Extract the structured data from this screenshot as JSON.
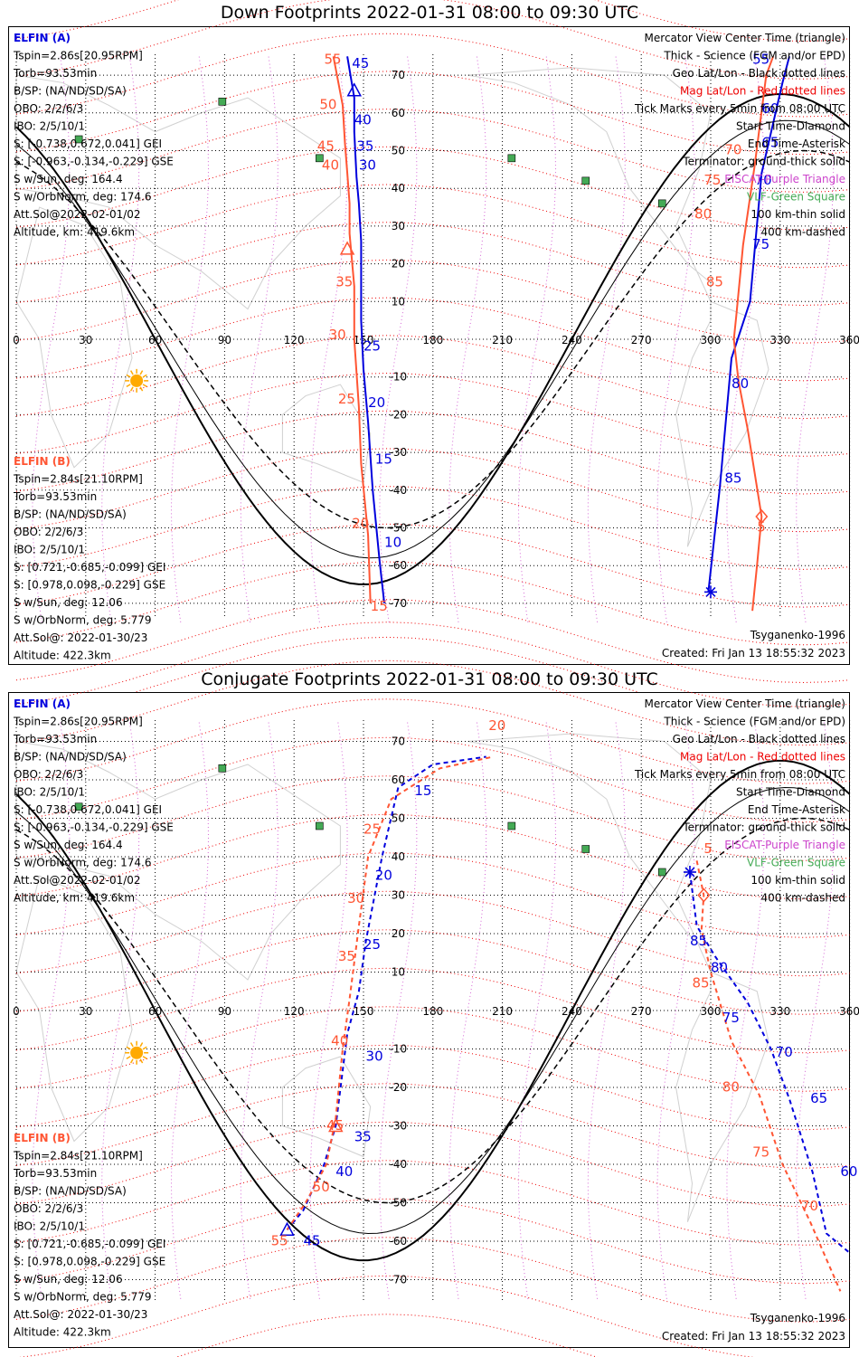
{
  "panels": [
    {
      "id": "down",
      "title": "Down Footprints 2022-01-31 08:00 to 09:30 UTC",
      "left_info": {
        "A": {
          "name": "ELFIN (A)",
          "lines": [
            "Tspin=2.86s[20.95RPM]",
            "Torb=93.53min",
            "B/SP: (NA/ND/SD/SA)",
            "OBO: 2/2/6/3",
            "IBO: 2/5/10/1",
            "S: [-0.738,0.672,0.041] GEI",
            "S: [-0.963,-0.134,-0.229] GSE",
            "S w/Sun, deg: 164.4",
            "S w/OrbNorm, deg: 174.6",
            "Att.Sol@2022-02-01/02",
            "Altitude, km: 419.6km"
          ]
        },
        "B": {
          "name": "ELFIN (B)",
          "lines": [
            "Tspin=2.84s[21.10RPM]",
            "Torb=93.53min",
            "B/SP: (NA/ND/SD/SA)",
            "OBO: 2/2/6/3",
            "IBO: 2/5/10/1",
            "S: [0.721,-0.685,-0.099] GEI",
            "S: [0.978,0.098,-0.229] GSE",
            "S w/Sun, deg: 12.06",
            "S w/OrbNorm, deg: 5.779",
            "Att.Sol@: 2022-01-30/23",
            "Altitude: 422.3km"
          ]
        }
      },
      "legend": [
        "Mercator View Center Time (triangle)",
        "Thick - Science (FGM and/or EPD)",
        "Geo Lat/Lon - Black dotted lines",
        "Mag Lat/Lon - Red dotted lines",
        "Tick Marks every 5min from 08:00 UTC",
        "Start Time-Diamond",
        "End Time-Asterisk",
        "Terminator: ground-thick solid",
        "EISCAT-Purple Triangle",
        "VLF-Green Square",
        "100 km-thin solid",
        "400 km-dashed"
      ],
      "model": "Tsyganenko-1996",
      "created": "Created: Fri Jan 13 18:55:32 2023"
    },
    {
      "id": "conjugate",
      "title": "Conjugate Footprints 2022-01-31 08:00 to 09:30 UTC",
      "left_info": {
        "A": {
          "name": "ELFIN (A)",
          "lines": [
            "Tspin=2.86s[20.95RPM]",
            "Torb=93.53min",
            "B/SP: (NA/ND/SD/SA)",
            "OBO: 2/2/6/3",
            "IBO: 2/5/10/1",
            "S: [-0.738,0.672,0.041] GEI",
            "S: [-0.963,-0.134,-0.229] GSE",
            "S w/Sun, deg: 164.4",
            "S w/OrbNorm, deg: 174.6",
            "Att.Sol@2022-02-01/02",
            "Altitude, km: 419.6km"
          ]
        },
        "B": {
          "name": "ELFIN (B)",
          "lines": [
            "Tspin=2.84s[21.10RPM]",
            "Torb=93.53min",
            "B/SP: (NA/ND/SD/SA)",
            "OBO: 2/2/6/3",
            "IBO: 2/5/10/1",
            "S: [0.721,-0.685,-0.099] GEI",
            "S: [0.978,0.098,-0.229] GSE",
            "S w/Sun, deg: 12.06",
            "S w/OrbNorm, deg: 5.779",
            "Att.Sol@: 2022-01-30/23",
            "Altitude: 422.3km"
          ]
        }
      },
      "legend": [
        "Mercator View Center Time (triangle)",
        "Thick - Science (FGM and/or EPD)",
        "Geo Lat/Lon - Black dotted lines",
        "Mag Lat/Lon - Red dotted lines",
        "Tick Marks every 5min from 08:00 UTC",
        "Start Time-Diamond",
        "End Time-Asterisk",
        "Terminator: ground-thick solid",
        "EISCAT-Purple Triangle",
        "VLF-Green Square",
        "100 km-thin solid",
        "400 km-dashed"
      ],
      "model": "Tsyganenko-1996",
      "created": "Created: Fri Jan 13 18:55:32 2023"
    }
  ],
  "colors": {
    "elfin_a": "#0000dd",
    "elfin_b": "#ff5533",
    "mag_grid": "#ee0000",
    "geo_grid": "#000000",
    "eiscat": "#cc44cc",
    "vlf": "#44aa55",
    "sun": "#ffaa00",
    "coast": "#aaaaaa"
  },
  "chart_data": [
    {
      "type": "line",
      "title": "Down Footprints 2022-01-31 08:00 to 09:30 UTC",
      "x_axis": {
        "label": "",
        "range": [
          0,
          360
        ],
        "ticks": [
          0,
          30,
          60,
          90,
          120,
          150,
          180,
          210,
          240,
          270,
          300,
          330,
          360
        ]
      },
      "y_axis": {
        "label": "",
        "range": [
          -75,
          75
        ],
        "ticks": [
          70,
          60,
          50,
          40,
          30,
          20,
          10,
          -10,
          -20,
          -30,
          -40,
          -50,
          -60,
          -70
        ]
      },
      "grid": true,
      "sun": {
        "lon": 52,
        "lat": -11
      },
      "vlf_sites": [
        [
          89,
          63
        ],
        [
          27,
          53
        ],
        [
          131,
          48
        ],
        [
          214,
          48
        ],
        [
          246,
          42
        ],
        [
          279,
          36
        ]
      ],
      "series": [
        {
          "name": "ELFIN (A)",
          "style": "solid",
          "points": [
            [
              143,
              75
            ],
            [
              146,
              64
            ],
            [
              146,
              55
            ],
            [
              147,
              43
            ],
            [
              148,
              36
            ],
            [
              149,
              26
            ],
            [
              149,
              5
            ],
            [
              150,
              -8
            ],
            [
              152,
              -22
            ],
            [
              154,
              -40
            ],
            [
              157,
              -59
            ],
            [
              159,
              -70
            ]
          ],
          "tick_labels": [
            45,
            40,
            35,
            30,
            25,
            20,
            15,
            10
          ],
          "end_marker": [
            300,
            -67
          ],
          "start_marker": null,
          "north_points": [
            [
              299,
              -67
            ],
            [
              304,
              -39
            ],
            [
              309,
              -5
            ],
            [
              317,
              10
            ],
            [
              322,
              44
            ],
            [
              331,
              68
            ],
            [
              334,
              75
            ]
          ],
          "north_tick_labels": [
            85,
            80,
            75,
            70,
            65,
            60,
            55
          ]
        },
        {
          "name": "ELFIN (B)",
          "style": "solid",
          "points": [
            [
              137,
              75
            ],
            [
              141,
              62
            ],
            [
              142,
              52
            ],
            [
              143,
              44
            ],
            [
              144,
              36
            ],
            [
              144,
              28
            ],
            [
              146,
              14
            ],
            [
              146,
              0
            ],
            [
              148,
              -18
            ],
            [
              149,
              -33
            ],
            [
              152,
              -52
            ],
            [
              153,
              -70
            ]
          ],
          "tick_labels": [
            55,
            50,
            45,
            40,
            35,
            30,
            25,
            20,
            15
          ],
          "start_marker": [
            322,
            -47
          ],
          "north_points": [
            [
              318,
              -72
            ],
            [
              320,
              -60
            ],
            [
              322,
              -47
            ],
            [
              316,
              -24
            ],
            [
              312,
              -11
            ],
            [
              310,
              0
            ],
            [
              311,
              6
            ],
            [
              314,
              25
            ],
            [
              319,
              46
            ],
            [
              324,
              70
            ],
            [
              327,
              75
            ]
          ],
          "north_tick_labels": [
            5,
            85,
            80,
            75,
            70,
            65
          ]
        },
        {
          "name": "Terminator",
          "style": "thick-solid",
          "sinusoid": {
            "amplitude": 65,
            "phase_lon": 150
          }
        },
        {
          "name": "100 km",
          "style": "thin-solid",
          "sinusoid": {
            "amplitude": 58,
            "phase_lon": 153
          }
        },
        {
          "name": "400 km",
          "style": "dashed",
          "sinusoid": {
            "amplitude": 50,
            "phase_lon": 160
          }
        }
      ],
      "tick_annotations": {
        "A": [
          [
            145,
            72,
            "45"
          ],
          [
            146,
            57,
            "40"
          ],
          [
            147,
            50,
            "35"
          ],
          [
            148,
            45,
            "30"
          ],
          [
            150,
            -3,
            "25"
          ],
          [
            152,
            -18,
            "20"
          ],
          [
            155,
            -33,
            "15"
          ],
          [
            159,
            -55,
            "10"
          ],
          [
            318,
            73,
            "55"
          ],
          [
            322,
            60,
            "60"
          ],
          [
            322,
            51,
            "65"
          ],
          [
            319,
            41,
            "70"
          ],
          [
            318,
            24,
            "75"
          ],
          [
            309,
            -13,
            "80"
          ],
          [
            306,
            -38,
            "85"
          ]
        ],
        "B": [
          [
            133,
            73,
            "55"
          ],
          [
            131,
            61,
            "50"
          ],
          [
            130,
            50,
            "45"
          ],
          [
            132,
            45,
            "40"
          ],
          [
            138,
            14,
            "35"
          ],
          [
            135,
            0,
            "30"
          ],
          [
            139,
            -17,
            "25"
          ],
          [
            145,
            -50,
            "20"
          ],
          [
            153,
            -72,
            "15"
          ],
          [
            306,
            49,
            "70"
          ],
          [
            297,
            41,
            "75"
          ],
          [
            293,
            32,
            "80"
          ],
          [
            298,
            14,
            "85"
          ],
          [
            320,
            -51,
            "5"
          ]
        ]
      }
    },
    {
      "type": "line",
      "title": "Conjugate Footprints 2022-01-31 08:00 to 09:30 UTC",
      "x_axis": {
        "label": "",
        "range": [
          0,
          360
        ],
        "ticks": [
          0,
          30,
          60,
          90,
          120,
          150,
          180,
          210,
          240,
          270,
          300,
          330,
          360
        ]
      },
      "y_axis": {
        "label": "",
        "range": [
          -75,
          75
        ],
        "ticks": [
          70,
          60,
          50,
          40,
          30,
          20,
          10,
          -10,
          -20,
          -30,
          -40,
          -50,
          -60,
          -70
        ]
      },
      "grid": true,
      "sun": {
        "lon": 52,
        "lat": -11
      },
      "vlf_sites": [
        [
          89,
          63
        ],
        [
          27,
          53
        ],
        [
          131,
          48
        ],
        [
          214,
          48
        ],
        [
          246,
          42
        ],
        [
          279,
          36
        ]
      ],
      "series": [
        {
          "name": "ELFIN (A)",
          "style": "dashed",
          "points": [
            [
              117,
              -57
            ],
            [
              124,
              -52
            ],
            [
              133,
              -40
            ],
            [
              138,
              -30
            ],
            [
              143,
              -6
            ],
            [
              148,
              5
            ],
            [
              151,
              18
            ],
            [
              158,
              40
            ],
            [
              165,
              58
            ],
            [
              180,
              64
            ],
            [
              203,
              66
            ]
          ],
          "tick_labels": [
            45,
            40,
            35,
            30,
            25,
            20,
            15
          ],
          "end_marker": [
            291,
            36
          ],
          "north_points": [
            [
              291,
              36
            ],
            [
              294,
              22
            ],
            [
              302,
              14
            ],
            [
              316,
              2
            ],
            [
              326,
              -10
            ],
            [
              334,
              -23
            ],
            [
              344,
              -42
            ],
            [
              350,
              -58
            ],
            [
              360,
              -63
            ]
          ],
          "north_tick_labels": [
            85,
            80,
            75,
            70,
            65,
            60
          ]
        },
        {
          "name": "ELFIN (B)",
          "style": "dashed",
          "points": [
            [
              117,
              -57
            ],
            [
              125,
              -50
            ],
            [
              134,
              -40
            ],
            [
              138,
              -28
            ],
            [
              141,
              -10
            ],
            [
              144,
              3
            ],
            [
              148,
              22
            ],
            [
              152,
              40
            ],
            [
              162,
              55
            ],
            [
              183,
              63
            ],
            [
              206,
              66
            ]
          ],
          "tick_labels": [
            55,
            50,
            45,
            40,
            35,
            30,
            25,
            20
          ],
          "start_marker": [
            297,
            30
          ],
          "north_points": [
            [
              294,
              39
            ],
            [
              297,
              30
            ],
            [
              296,
              21
            ],
            [
              300,
              10
            ],
            [
              309,
              -8
            ],
            [
              321,
              -22
            ],
            [
              331,
              -40
            ],
            [
              343,
              -55
            ],
            [
              356,
              -73
            ]
          ],
          "north_tick_labels": [
            5,
            85,
            80,
            75,
            70
          ]
        },
        {
          "name": "Terminator",
          "style": "thick-solid",
          "sinusoid": {
            "amplitude": 65,
            "phase_lon": 150
          }
        },
        {
          "name": "100 km",
          "style": "thin-solid",
          "sinusoid": {
            "amplitude": 58,
            "phase_lon": 153
          }
        },
        {
          "name": "400 km",
          "style": "dashed",
          "sinusoid": {
            "amplitude": 50,
            "phase_lon": 160
          }
        }
      ],
      "tick_annotations": {
        "A": [
          [
            124,
            -61,
            "45"
          ],
          [
            138,
            -43,
            "40"
          ],
          [
            146,
            -34,
            "35"
          ],
          [
            151,
            -13,
            "30"
          ],
          [
            150,
            16,
            "25"
          ],
          [
            155,
            34,
            "20"
          ],
          [
            172,
            56,
            "15"
          ],
          [
            291,
            17,
            "85"
          ],
          [
            300,
            10,
            "80"
          ],
          [
            305,
            -3,
            "75"
          ],
          [
            328,
            -12,
            "70"
          ],
          [
            343,
            -24,
            "65"
          ],
          [
            356,
            -43,
            "60"
          ]
        ],
        "B": [
          [
            110,
            -61,
            "55"
          ],
          [
            128,
            -47,
            "50"
          ],
          [
            134,
            -31,
            "45"
          ],
          [
            136,
            -9,
            "40"
          ],
          [
            139,
            13,
            "35"
          ],
          [
            143,
            28,
            "30"
          ],
          [
            150,
            46,
            "25"
          ],
          [
            204,
            73,
            "20"
          ],
          [
            297,
            41,
            "5"
          ],
          [
            292,
            6,
            "85"
          ],
          [
            305,
            -21,
            "80"
          ],
          [
            318,
            -38,
            "75"
          ],
          [
            339,
            -52,
            "70"
          ]
        ]
      }
    }
  ]
}
